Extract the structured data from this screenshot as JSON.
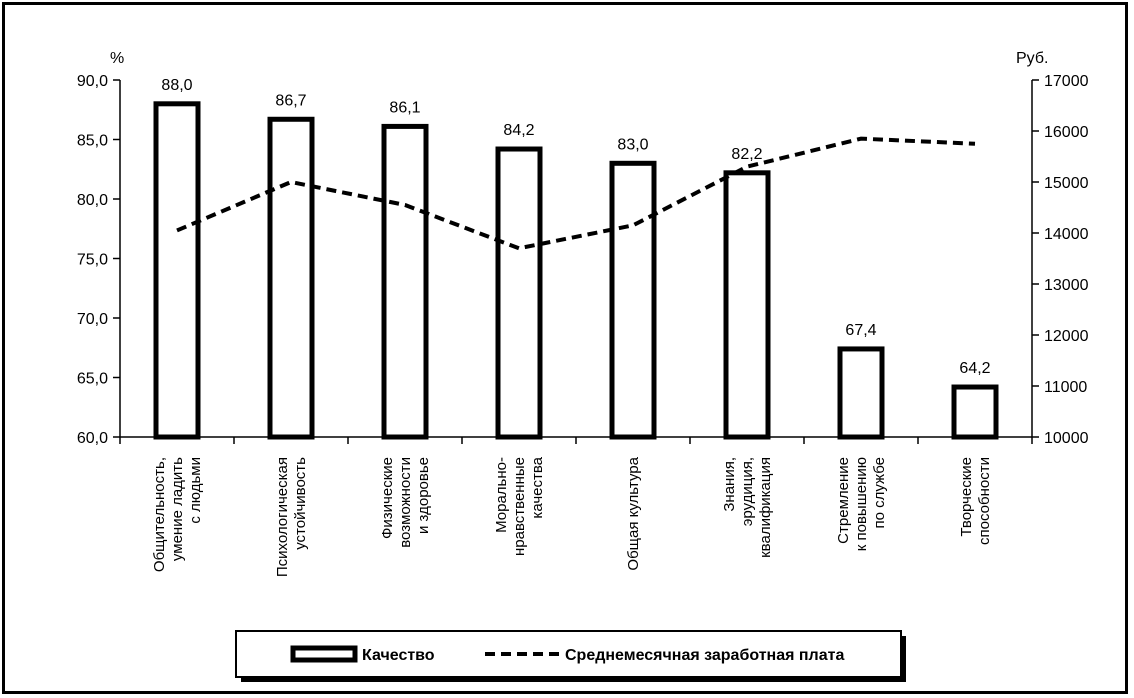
{
  "chart_data": {
    "type": "bar",
    "left_unit": "%",
    "right_unit": "Руб.",
    "categories": [
      [
        "Общительность,",
        "умение ладить",
        "с людьми"
      ],
      [
        "Психологическая",
        "устойчивость"
      ],
      [
        "Физические",
        "возможности",
        "и здоровье"
      ],
      [
        "Морально-",
        "нравственные",
        "качества"
      ],
      [
        "Общая культура"
      ],
      [
        "Знания,",
        "эрудиция,",
        "квалификация"
      ],
      [
        "Стремление",
        "к повышению",
        "по службе"
      ],
      [
        "Творческие",
        "способности"
      ]
    ],
    "series": [
      {
        "name": "Качество",
        "type": "bar",
        "axis": "left",
        "values": [
          88.0,
          86.7,
          86.1,
          84.2,
          83.0,
          82.2,
          67.4,
          64.2
        ],
        "labels": [
          "88,0",
          "86,7",
          "86,1",
          "84,2",
          "83,0",
          "82,2",
          "67,4",
          "64,2"
        ]
      },
      {
        "name": "Среднемесячная заработная плата",
        "type": "line",
        "style": "dashed",
        "axis": "right",
        "values": [
          14050,
          15000,
          14550,
          13700,
          14150,
          15300,
          15850,
          15750
        ]
      }
    ],
    "y_left": {
      "ylim": [
        60,
        90
      ],
      "ticks": [
        60,
        65,
        70,
        75,
        80,
        85,
        90
      ],
      "tick_labels": [
        "60,0",
        "65,0",
        "70,0",
        "75,0",
        "80,0",
        "85,0",
        "90,0"
      ]
    },
    "y_right": {
      "ylim": [
        10000,
        17000
      ],
      "ticks": [
        10000,
        11000,
        12000,
        13000,
        14000,
        15000,
        16000,
        17000
      ],
      "tick_labels": [
        "10000",
        "11000",
        "12000",
        "13000",
        "14000",
        "15000",
        "16000",
        "17000"
      ]
    },
    "legend": {
      "placement": "bottom",
      "items": [
        "Качество",
        "Среднемесячная заработная плата"
      ]
    },
    "colors": {
      "bar_stroke": "#000000",
      "bar_fill": "#ffffff",
      "line": "#000000"
    }
  }
}
